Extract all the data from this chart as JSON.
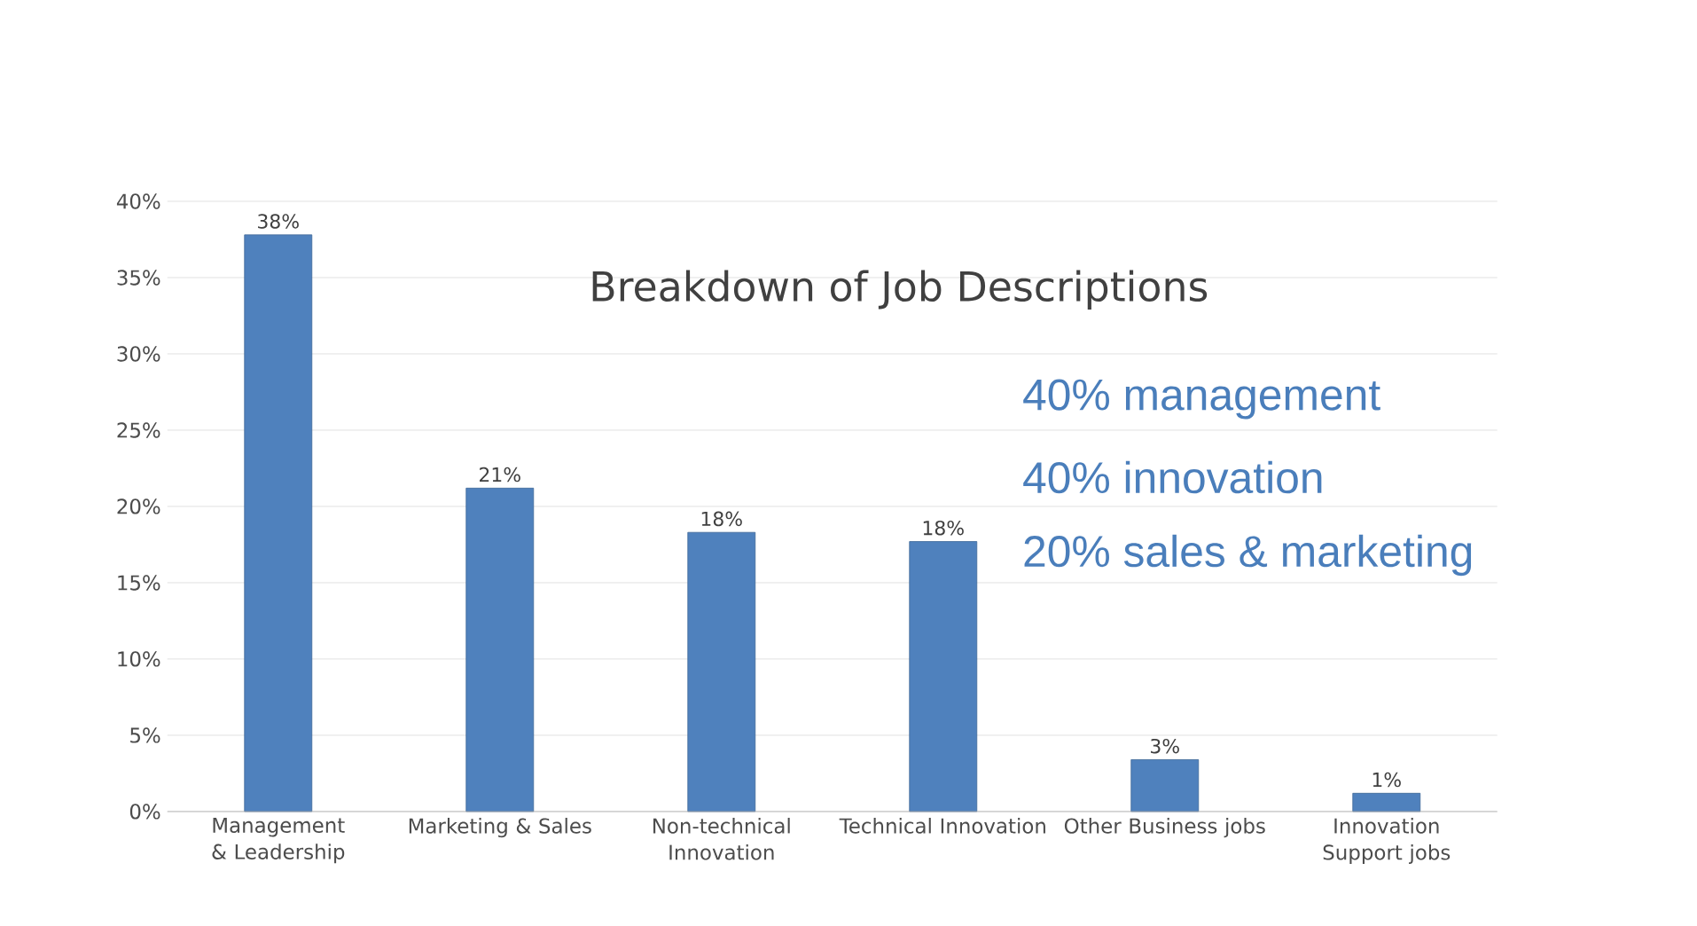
{
  "chart_data": {
    "type": "bar",
    "title": "Breakdown of Job Descriptions",
    "categories": [
      "Management & Leadership",
      "Marketing & Sales",
      "Non-technical Innovation",
      "Technical Innovation",
      "Other Business jobs",
      "Innovation Support jobs"
    ],
    "values": [
      37.8,
      21.2,
      18.3,
      17.7,
      3.4,
      1.2
    ],
    "value_labels": [
      "38%",
      "21%",
      "18%",
      "18%",
      "3%",
      "1%"
    ],
    "color": "#4f81bd",
    "ylim": [
      0,
      40
    ],
    "yticks": [
      {
        "value": 0,
        "label": "0%"
      },
      {
        "value": 5,
        "label": "5%"
      },
      {
        "value": 10,
        "label": "10%"
      },
      {
        "value": 15,
        "label": "15%"
      },
      {
        "value": 20,
        "label": "20%"
      },
      {
        "value": 25,
        "label": "25%"
      },
      {
        "value": 30,
        "label": "30%"
      },
      {
        "value": 35,
        "label": "35%"
      },
      {
        "value": 40,
        "label": "40%"
      }
    ],
    "grid": "y",
    "annotations": [
      "40% management",
      "40% innovation",
      "20% sales & marketing"
    ]
  }
}
